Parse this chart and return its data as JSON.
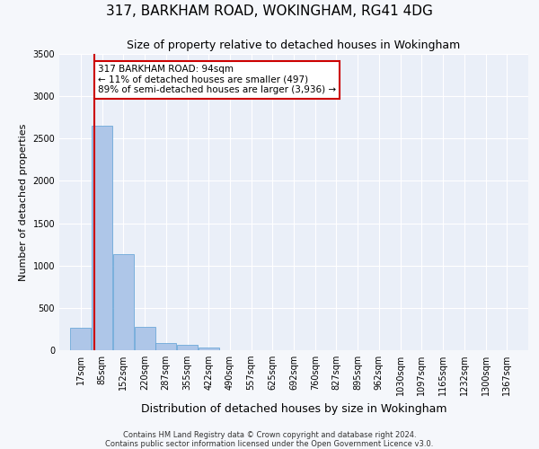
{
  "title1": "317, BARKHAM ROAD, WOKINGHAM, RG41 4DG",
  "title2": "Size of property relative to detached houses in Wokingham",
  "xlabel": "Distribution of detached houses by size in Wokingham",
  "ylabel": "Number of detached properties",
  "bin_labels": [
    "17sqm",
    "85sqm",
    "152sqm",
    "220sqm",
    "287sqm",
    "355sqm",
    "422sqm",
    "490sqm",
    "557sqm",
    "625sqm",
    "692sqm",
    "760sqm",
    "827sqm",
    "895sqm",
    "962sqm",
    "1030sqm",
    "1097sqm",
    "1165sqm",
    "1232sqm",
    "1300sqm",
    "1367sqm"
  ],
  "bar_values": [
    270,
    2650,
    1140,
    280,
    90,
    60,
    35,
    0,
    0,
    0,
    0,
    0,
    0,
    0,
    0,
    0,
    0,
    0,
    0,
    0,
    0
  ],
  "bar_color": "#aec6e8",
  "bar_edge_color": "#5a9fd4",
  "bin_edges": [
    17,
    85,
    152,
    220,
    287,
    355,
    422,
    490,
    557,
    625,
    692,
    760,
    827,
    895,
    962,
    1030,
    1097,
    1165,
    1232,
    1300,
    1367
  ],
  "annotation_text": "317 BARKHAM ROAD: 94sqm\n← 11% of detached houses are smaller (497)\n89% of semi-detached houses are larger (3,936) →",
  "annotation_box_color": "#ffffff",
  "annotation_border_color": "#cc0000",
  "vline_x": 94,
  "vline_color": "#cc0000",
  "ylim": [
    0,
    3500
  ],
  "yticks": [
    0,
    500,
    1000,
    1500,
    2000,
    2500,
    3000,
    3500
  ],
  "footnote1": "Contains HM Land Registry data © Crown copyright and database right 2024.",
  "footnote2": "Contains public sector information licensed under the Open Government Licence v3.0.",
  "bg_color": "#eaeff8",
  "grid_color": "#ffffff",
  "title1_fontsize": 11,
  "title2_fontsize": 9,
  "xlabel_fontsize": 9,
  "ylabel_fontsize": 8,
  "tick_fontsize": 7,
  "annot_fontsize": 7.5
}
